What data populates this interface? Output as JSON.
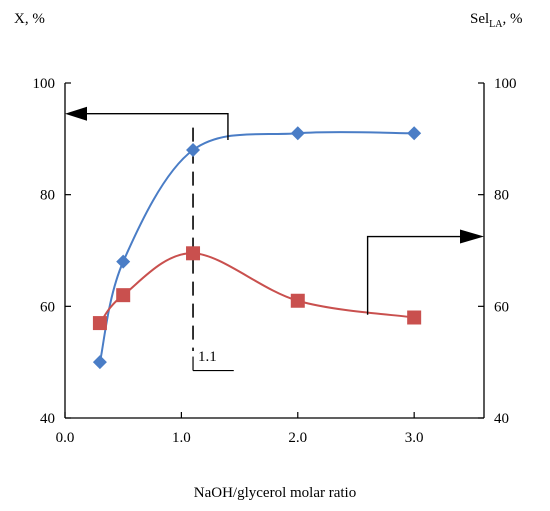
{
  "chart_data": {
    "type": "scatter",
    "title": "",
    "xlabel": "NaOH/glycerol molar ratio",
    "ylabel_left": "X, %",
    "ylabel_right_main": "Sel",
    "ylabel_right_sub": "LA",
    "ylabel_right_suffix": ", %",
    "xlim": [
      0,
      3.6
    ],
    "ylim": [
      40,
      100
    ],
    "x_ticks": [
      "0.0",
      "1.0",
      "2.0",
      "3.0"
    ],
    "y_ticks": [
      "40",
      "60",
      "80",
      "100"
    ],
    "grid": false,
    "series": [
      {
        "marker": "diamond",
        "axis": "left",
        "color": "#4a7dc6",
        "x": [
          0.3,
          0.5,
          1.1,
          2.0,
          3.0
        ],
        "y": [
          50,
          68,
          88,
          91,
          91
        ]
      },
      {
        "marker": "square",
        "axis": "right",
        "color": "#c9504e",
        "x": [
          0.3,
          0.5,
          1.1,
          2.0,
          3.0
        ],
        "y": [
          57,
          62,
          69.5,
          61,
          58
        ]
      }
    ],
    "annotation": {
      "text": "1.1",
      "x": 1.1
    }
  }
}
